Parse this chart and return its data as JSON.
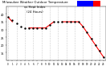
{
  "title": "Milwaukee Weather Outdoor Temperature",
  "subtitle": "vs Heat Index",
  "subtitle2": "(24 Hours)",
  "bg_color": "#ffffff",
  "plot_bg_color": "#ffffff",
  "grid_color": "#cccccc",
  "temp_color": "#ff0000",
  "heat_color": "#000000",
  "legend_temp_color": "#0000ff",
  "legend_heat_color": "#ff0000",
  "hours": [
    0,
    1,
    2,
    3,
    4,
    5,
    6,
    7,
    8,
    9,
    10,
    11,
    12,
    13,
    14,
    15,
    16,
    17,
    18,
    19,
    20,
    21,
    22,
    23
  ],
  "temp_data": [
    38,
    35,
    null,
    null,
    null,
    null,
    31,
    31,
    31,
    31,
    35,
    35,
    null,
    35,
    35,
    35,
    35,
    35,
    32,
    28,
    24,
    20,
    16,
    12
  ],
  "heat_data": [
    38,
    35,
    null,
    null,
    null,
    null,
    31,
    31,
    31,
    31,
    35,
    35,
    null,
    35,
    35,
    35,
    35,
    35,
    32,
    28,
    24,
    20,
    16,
    12
  ],
  "ylim": [
    10,
    45
  ],
  "xlim": [
    -0.5,
    23.5
  ],
  "yticks": [
    15,
    20,
    25,
    30,
    35,
    40
  ],
  "xtick_labels": [
    "0",
    "1",
    "2",
    "3",
    "4",
    "5",
    "6",
    "7",
    "8",
    "9",
    "10",
    "11",
    "12",
    "13",
    "14",
    "15",
    "16",
    "17",
    "18",
    "19",
    "20",
    "21",
    "22",
    "23"
  ]
}
